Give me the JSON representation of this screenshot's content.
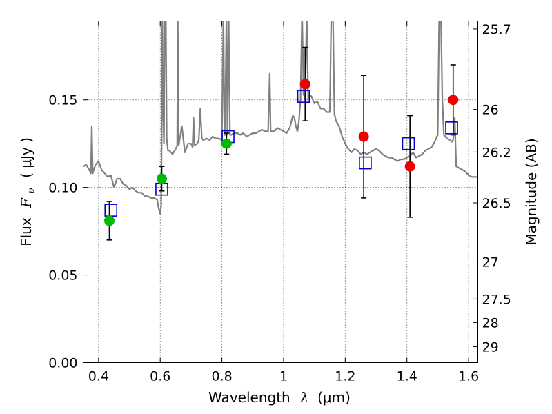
{
  "chart_data": {
    "type": "scatter",
    "title": "",
    "xlabel": "Wavelength",
    "xlabel_symbol": "λ",
    "xlabel_unit": "(μm)",
    "ylabel": "Flux",
    "ylabel_symbol": "F",
    "ylabel_subscript": "ν",
    "ylabel_unit": "( μJy )",
    "y2label": "Magnitude (AB)",
    "xlim": [
      0.35,
      1.63
    ],
    "ylim": [
      0.0,
      0.195
    ],
    "grid": true,
    "x_ticks": [
      0.4,
      0.6,
      0.8,
      1.0,
      1.2,
      1.4,
      1.6
    ],
    "x_tick_labels": [
      "0.4",
      "0.6",
      "0.8",
      "1",
      "1.2",
      "1.4",
      "1.6"
    ],
    "y_ticks": [
      0.0,
      0.05,
      0.1,
      0.15
    ],
    "y_tick_labels": [
      "0.00",
      "0.05",
      "0.10",
      "0.15"
    ],
    "mag_ticks": [
      {
        "label": "25.7",
        "flux": 0.1905
      },
      {
        "label": "26",
        "flux": 0.1445
      },
      {
        "label": "26.2",
        "flux": 0.1202
      },
      {
        "label": "26.5",
        "flux": 0.0912
      },
      {
        "label": "27",
        "flux": 0.0575
      },
      {
        "label": "27.5",
        "flux": 0.0363
      },
      {
        "label": "28",
        "flux": 0.0229
      },
      {
        "label": "29",
        "flux": 0.0091
      }
    ],
    "model_color": "#808080",
    "model_spectrum": [
      [
        0.35,
        0.112
      ],
      [
        0.36,
        0.113
      ],
      [
        0.37,
        0.11
      ],
      [
        0.375,
        0.108
      ],
      [
        0.378,
        0.135
      ],
      [
        0.381,
        0.108
      ],
      [
        0.39,
        0.113
      ],
      [
        0.4,
        0.115
      ],
      [
        0.41,
        0.11
      ],
      [
        0.42,
        0.108
      ],
      [
        0.43,
        0.106
      ],
      [
        0.44,
        0.107
      ],
      [
        0.45,
        0.1
      ],
      [
        0.46,
        0.105
      ],
      [
        0.47,
        0.105
      ],
      [
        0.48,
        0.102
      ],
      [
        0.49,
        0.101
      ],
      [
        0.5,
        0.099
      ],
      [
        0.51,
        0.1
      ],
      [
        0.52,
        0.098
      ],
      [
        0.53,
        0.097
      ],
      [
        0.54,
        0.097
      ],
      [
        0.55,
        0.095
      ],
      [
        0.56,
        0.095
      ],
      [
        0.57,
        0.094
      ],
      [
        0.58,
        0.094
      ],
      [
        0.59,
        0.093
      ],
      [
        0.595,
        0.088
      ],
      [
        0.6,
        0.085
      ],
      [
        0.603,
        0.09
      ],
      [
        0.605,
        0.14
      ],
      [
        0.607,
        0.2
      ],
      [
        0.609,
        0.15
      ],
      [
        0.612,
        0.125
      ],
      [
        0.615,
        0.2
      ],
      [
        0.618,
        0.2
      ],
      [
        0.621,
        0.128
      ],
      [
        0.625,
        0.121
      ],
      [
        0.63,
        0.121
      ],
      [
        0.64,
        0.119
      ],
      [
        0.65,
        0.122
      ],
      [
        0.655,
        0.124
      ],
      [
        0.657,
        0.195
      ],
      [
        0.66,
        0.124
      ],
      [
        0.67,
        0.135
      ],
      [
        0.68,
        0.12
      ],
      [
        0.69,
        0.125
      ],
      [
        0.7,
        0.125
      ],
      [
        0.705,
        0.123
      ],
      [
        0.708,
        0.14
      ],
      [
        0.711,
        0.124
      ],
      [
        0.72,
        0.125
      ],
      [
        0.725,
        0.127
      ],
      [
        0.73,
        0.145
      ],
      [
        0.735,
        0.128
      ],
      [
        0.74,
        0.127
      ],
      [
        0.75,
        0.128
      ],
      [
        0.76,
        0.127
      ],
      [
        0.77,
        0.129
      ],
      [
        0.78,
        0.128
      ],
      [
        0.79,
        0.128
      ],
      [
        0.8,
        0.127
      ],
      [
        0.805,
        0.2
      ],
      [
        0.808,
        0.13
      ],
      [
        0.81,
        0.13
      ],
      [
        0.815,
        0.2
      ],
      [
        0.818,
        0.13
      ],
      [
        0.822,
        0.2
      ],
      [
        0.826,
        0.13
      ],
      [
        0.83,
        0.13
      ],
      [
        0.84,
        0.131
      ],
      [
        0.85,
        0.131
      ],
      [
        0.86,
        0.13
      ],
      [
        0.87,
        0.131
      ],
      [
        0.88,
        0.129
      ],
      [
        0.89,
        0.13
      ],
      [
        0.9,
        0.131
      ],
      [
        0.91,
        0.131
      ],
      [
        0.92,
        0.132
      ],
      [
        0.93,
        0.133
      ],
      [
        0.94,
        0.132
      ],
      [
        0.95,
        0.132
      ],
      [
        0.955,
        0.165
      ],
      [
        0.958,
        0.132
      ],
      [
        0.97,
        0.132
      ],
      [
        0.98,
        0.134
      ],
      [
        0.99,
        0.133
      ],
      [
        1.0,
        0.132
      ],
      [
        1.01,
        0.131
      ],
      [
        1.02,
        0.134
      ],
      [
        1.03,
        0.141
      ],
      [
        1.035,
        0.14
      ],
      [
        1.04,
        0.135
      ],
      [
        1.045,
        0.132
      ],
      [
        1.05,
        0.138
      ],
      [
        1.055,
        0.15
      ],
      [
        1.06,
        0.2
      ],
      [
        1.065,
        0.153
      ],
      [
        1.07,
        0.151
      ],
      [
        1.075,
        0.2
      ],
      [
        1.08,
        0.15
      ],
      [
        1.085,
        0.153
      ],
      [
        1.09,
        0.152
      ],
      [
        1.1,
        0.148
      ],
      [
        1.11,
        0.149
      ],
      [
        1.12,
        0.145
      ],
      [
        1.13,
        0.145
      ],
      [
        1.14,
        0.143
      ],
      [
        1.15,
        0.143
      ],
      [
        1.155,
        0.2
      ],
      [
        1.16,
        0.2
      ],
      [
        1.165,
        0.142
      ],
      [
        1.17,
        0.138
      ],
      [
        1.18,
        0.135
      ],
      [
        1.19,
        0.129
      ],
      [
        1.2,
        0.125
      ],
      [
        1.21,
        0.122
      ],
      [
        1.22,
        0.12
      ],
      [
        1.23,
        0.122
      ],
      [
        1.24,
        0.121
      ],
      [
        1.25,
        0.119
      ],
      [
        1.26,
        0.12
      ],
      [
        1.27,
        0.119
      ],
      [
        1.28,
        0.12
      ],
      [
        1.29,
        0.121
      ],
      [
        1.3,
        0.122
      ],
      [
        1.31,
        0.121
      ],
      [
        1.32,
        0.119
      ],
      [
        1.33,
        0.118
      ],
      [
        1.34,
        0.117
      ],
      [
        1.35,
        0.117
      ],
      [
        1.36,
        0.116
      ],
      [
        1.37,
        0.115
      ],
      [
        1.38,
        0.116
      ],
      [
        1.39,
        0.116
      ],
      [
        1.4,
        0.117
      ],
      [
        1.41,
        0.118
      ],
      [
        1.42,
        0.12
      ],
      [
        1.43,
        0.117
      ],
      [
        1.44,
        0.118
      ],
      [
        1.45,
        0.119
      ],
      [
        1.46,
        0.121
      ],
      [
        1.47,
        0.122
      ],
      [
        1.48,
        0.123
      ],
      [
        1.49,
        0.126
      ],
      [
        1.5,
        0.13
      ],
      [
        1.505,
        0.2
      ],
      [
        1.51,
        0.2
      ],
      [
        1.515,
        0.15
      ],
      [
        1.52,
        0.13
      ],
      [
        1.53,
        0.128
      ],
      [
        1.54,
        0.127
      ],
      [
        1.545,
        0.126
      ],
      [
        1.55,
        0.127
      ],
      [
        1.555,
        0.14
      ],
      [
        1.56,
        0.112
      ],
      [
        1.57,
        0.111
      ],
      [
        1.58,
        0.11
      ],
      [
        1.59,
        0.109
      ],
      [
        1.6,
        0.107
      ],
      [
        1.61,
        0.106
      ],
      [
        1.62,
        0.106
      ],
      [
        1.63,
        0.106
      ]
    ],
    "model_photometry": {
      "color": "#0000cc",
      "marker": "open-square",
      "x": [
        0.44,
        0.605,
        0.82,
        1.065,
        1.265,
        1.405,
        1.545
      ],
      "y": [
        0.087,
        0.099,
        0.129,
        0.152,
        0.114,
        0.125,
        0.134
      ]
    },
    "observed_green": {
      "color": "#00bb00",
      "x": [
        0.435,
        0.605,
        0.815
      ],
      "y": [
        0.081,
        0.105,
        0.125
      ],
      "yerr": [
        0.011,
        0.007,
        0.006
      ]
    },
    "observed_red": {
      "color": "#ee0000",
      "x": [
        1.07,
        1.26,
        1.41,
        1.55
      ],
      "y": [
        0.159,
        0.129,
        0.112,
        0.15
      ],
      "yerr": [
        0.021,
        0.035,
        0.029,
        0.02
      ]
    }
  }
}
